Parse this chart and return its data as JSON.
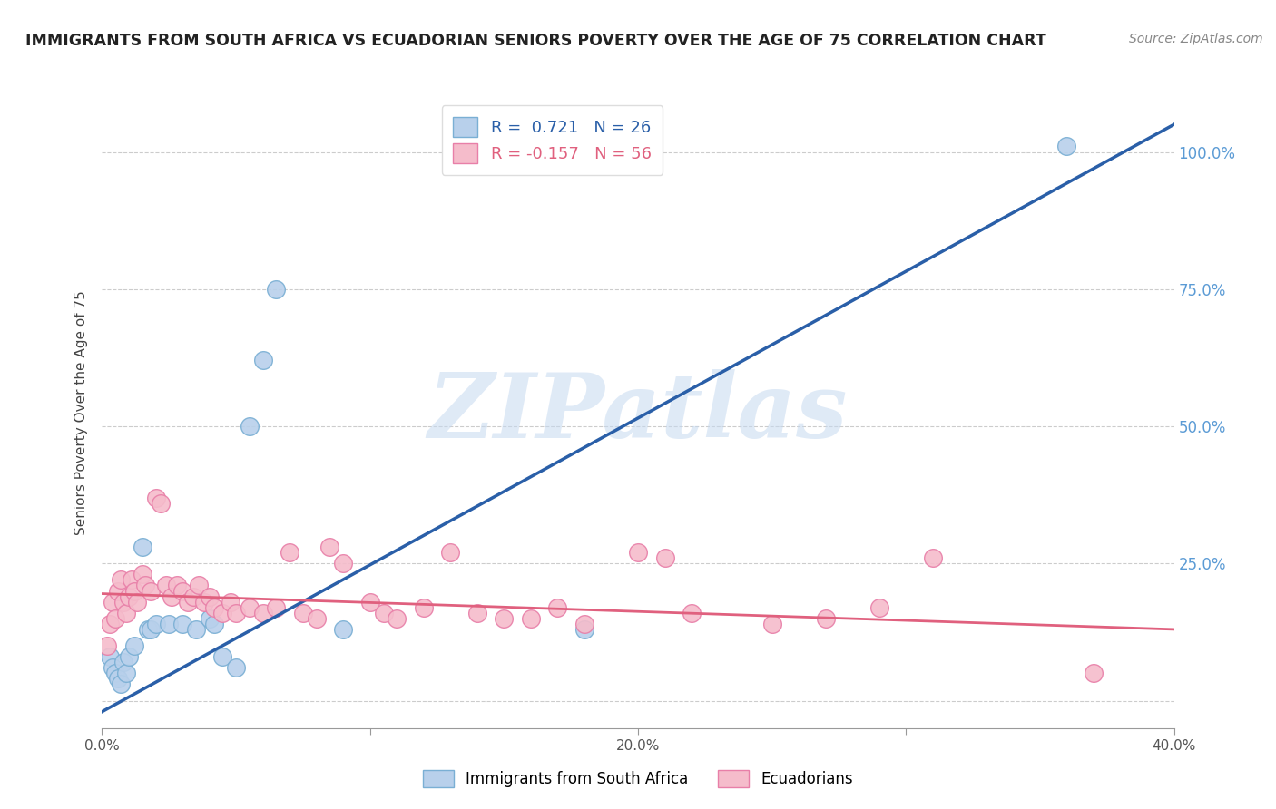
{
  "title": "IMMIGRANTS FROM SOUTH AFRICA VS ECUADORIAN SENIORS POVERTY OVER THE AGE OF 75 CORRELATION CHART",
  "source": "Source: ZipAtlas.com",
  "ylabel": "Seniors Poverty Over the Age of 75",
  "watermark": "ZIPatlas",
  "xlim": [
    0.0,
    0.4
  ],
  "ylim": [
    -0.05,
    1.1
  ],
  "xticks": [
    0.0,
    0.1,
    0.2,
    0.3,
    0.4
  ],
  "xticklabels": [
    "0.0%",
    "",
    "20.0%",
    "",
    "40.0%"
  ],
  "yticks": [
    0.0,
    0.25,
    0.5,
    0.75,
    1.0
  ],
  "yticklabels_right": [
    "",
    "25.0%",
    "50.0%",
    "75.0%",
    "100.0%"
  ],
  "series1_color": "#b8d0eb",
  "series1_edge": "#7aafd4",
  "series2_color": "#f5bccb",
  "series2_edge": "#e87fa8",
  "trendline1_color": "#2a5fa8",
  "trendline2_color": "#e0607e",
  "legend1_label": "R =  0.721   N = 26",
  "legend2_label": "R = -0.157   N = 56",
  "legend_label1": "Immigrants from South Africa",
  "legend_label2": "Ecuadorians",
  "blue_points": [
    [
      0.003,
      0.08
    ],
    [
      0.004,
      0.06
    ],
    [
      0.005,
      0.05
    ],
    [
      0.006,
      0.04
    ],
    [
      0.007,
      0.03
    ],
    [
      0.008,
      0.07
    ],
    [
      0.009,
      0.05
    ],
    [
      0.01,
      0.08
    ],
    [
      0.012,
      0.1
    ],
    [
      0.015,
      0.28
    ],
    [
      0.017,
      0.13
    ],
    [
      0.018,
      0.13
    ],
    [
      0.02,
      0.14
    ],
    [
      0.025,
      0.14
    ],
    [
      0.03,
      0.14
    ],
    [
      0.035,
      0.13
    ],
    [
      0.04,
      0.15
    ],
    [
      0.042,
      0.14
    ],
    [
      0.045,
      0.08
    ],
    [
      0.05,
      0.06
    ],
    [
      0.055,
      0.5
    ],
    [
      0.06,
      0.62
    ],
    [
      0.065,
      0.75
    ],
    [
      0.09,
      0.13
    ],
    [
      0.18,
      0.13
    ],
    [
      0.36,
      1.01
    ]
  ],
  "pink_points": [
    [
      0.002,
      0.1
    ],
    [
      0.003,
      0.14
    ],
    [
      0.004,
      0.18
    ],
    [
      0.005,
      0.15
    ],
    [
      0.006,
      0.2
    ],
    [
      0.007,
      0.22
    ],
    [
      0.008,
      0.18
    ],
    [
      0.009,
      0.16
    ],
    [
      0.01,
      0.19
    ],
    [
      0.011,
      0.22
    ],
    [
      0.012,
      0.2
    ],
    [
      0.013,
      0.18
    ],
    [
      0.015,
      0.23
    ],
    [
      0.016,
      0.21
    ],
    [
      0.018,
      0.2
    ],
    [
      0.02,
      0.37
    ],
    [
      0.022,
      0.36
    ],
    [
      0.024,
      0.21
    ],
    [
      0.026,
      0.19
    ],
    [
      0.028,
      0.21
    ],
    [
      0.03,
      0.2
    ],
    [
      0.032,
      0.18
    ],
    [
      0.034,
      0.19
    ],
    [
      0.036,
      0.21
    ],
    [
      0.038,
      0.18
    ],
    [
      0.04,
      0.19
    ],
    [
      0.042,
      0.17
    ],
    [
      0.045,
      0.16
    ],
    [
      0.048,
      0.18
    ],
    [
      0.05,
      0.16
    ],
    [
      0.055,
      0.17
    ],
    [
      0.06,
      0.16
    ],
    [
      0.065,
      0.17
    ],
    [
      0.07,
      0.27
    ],
    [
      0.075,
      0.16
    ],
    [
      0.08,
      0.15
    ],
    [
      0.085,
      0.28
    ],
    [
      0.09,
      0.25
    ],
    [
      0.1,
      0.18
    ],
    [
      0.105,
      0.16
    ],
    [
      0.11,
      0.15
    ],
    [
      0.12,
      0.17
    ],
    [
      0.13,
      0.27
    ],
    [
      0.14,
      0.16
    ],
    [
      0.15,
      0.15
    ],
    [
      0.16,
      0.15
    ],
    [
      0.17,
      0.17
    ],
    [
      0.18,
      0.14
    ],
    [
      0.2,
      0.27
    ],
    [
      0.21,
      0.26
    ],
    [
      0.22,
      0.16
    ],
    [
      0.25,
      0.14
    ],
    [
      0.27,
      0.15
    ],
    [
      0.29,
      0.17
    ],
    [
      0.31,
      0.26
    ],
    [
      0.37,
      0.05
    ]
  ],
  "background_color": "#ffffff",
  "grid_color": "#cccccc"
}
